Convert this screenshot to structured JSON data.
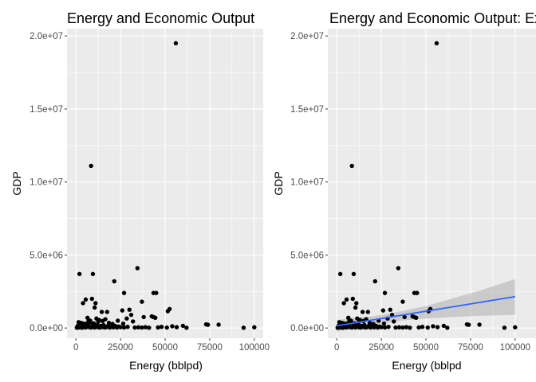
{
  "chart_data": [
    {
      "type": "scatter",
      "title": "Energy and Economic Output",
      "xlabel": "Energy (bblpd)",
      "ylabel": "GDP",
      "xlim": [
        -5000,
        105000
      ],
      "ylim": [
        -700000,
        20500000
      ],
      "x_ticks": [
        0,
        25000,
        50000,
        75000,
        100000
      ],
      "x_tick_labels": [
        "0",
        "25000",
        "50000",
        "75000",
        "100000"
      ],
      "y_ticks": [
        0,
        5000000,
        10000000,
        15000000,
        20000000
      ],
      "y_tick_labels": [
        "0.0e+00",
        "5.0e+06",
        "1.0e+07",
        "1.5e+07",
        "2.0e+07"
      ],
      "grid": true,
      "points": [
        [
          56000,
          19500000
        ],
        [
          8500,
          11100000
        ],
        [
          34500,
          4100000
        ],
        [
          2000,
          3700000
        ],
        [
          9500,
          3700000
        ],
        [
          21500,
          3200000
        ],
        [
          43500,
          2400000
        ],
        [
          45000,
          2400000
        ],
        [
          27000,
          2400000
        ],
        [
          9000,
          2000000
        ],
        [
          5500,
          1950000
        ],
        [
          4000,
          1700000
        ],
        [
          11000,
          1700000
        ],
        [
          52500,
          1300000
        ],
        [
          51500,
          1150000
        ],
        [
          30000,
          1250000
        ],
        [
          37000,
          1800000
        ],
        [
          10500,
          1400000
        ],
        [
          14500,
          1100000
        ],
        [
          17500,
          1100000
        ],
        [
          26000,
          1200000
        ],
        [
          31000,
          900000
        ],
        [
          42500,
          800000
        ],
        [
          43500,
          750000
        ],
        [
          44500,
          700000
        ],
        [
          38000,
          750000
        ],
        [
          28500,
          650000
        ],
        [
          16500,
          600000
        ],
        [
          6500,
          700000
        ],
        [
          11500,
          650000
        ],
        [
          13000,
          550000
        ],
        [
          8000,
          500000
        ],
        [
          1500,
          400000
        ],
        [
          3000,
          350000
        ],
        [
          4500,
          300000
        ],
        [
          5500,
          250000
        ],
        [
          7000,
          200000
        ],
        [
          9500,
          250000
        ],
        [
          12000,
          200000
        ],
        [
          14000,
          150000
        ],
        [
          15500,
          200000
        ],
        [
          18000,
          150000
        ],
        [
          20000,
          100000
        ],
        [
          22000,
          150000
        ],
        [
          24000,
          100000
        ],
        [
          1000,
          150000
        ],
        [
          2000,
          100000
        ],
        [
          2500,
          50000
        ],
        [
          3500,
          120000
        ],
        [
          4500,
          80000
        ],
        [
          5500,
          40000
        ],
        [
          6500,
          100000
        ],
        [
          7500,
          60000
        ],
        [
          8500,
          30000
        ],
        [
          9500,
          80000
        ],
        [
          10500,
          40000
        ],
        [
          11500,
          90000
        ],
        [
          12500,
          50000
        ],
        [
          13500,
          30000
        ],
        [
          14500,
          70000
        ],
        [
          16000,
          40000
        ],
        [
          17000,
          60000
        ],
        [
          19000,
          30000
        ],
        [
          21000,
          50000
        ],
        [
          23000,
          30000
        ],
        [
          25000,
          60000
        ],
        [
          27000,
          40000
        ],
        [
          29000,
          80000
        ],
        [
          33000,
          30000
        ],
        [
          35000,
          50000
        ],
        [
          37000,
          30000
        ],
        [
          39000,
          60000
        ],
        [
          41000,
          20000
        ],
        [
          46000,
          40000
        ],
        [
          48000,
          80000
        ],
        [
          51000,
          30000
        ],
        [
          54000,
          120000
        ],
        [
          56500,
          60000
        ],
        [
          60000,
          150000
        ],
        [
          62000,
          20000
        ],
        [
          73000,
          250000
        ],
        [
          74000,
          220000
        ],
        [
          80000,
          230000
        ],
        [
          94000,
          20000
        ],
        [
          100000,
          50000
        ],
        [
          500,
          20000
        ],
        [
          1500,
          30000
        ],
        [
          2500,
          150000
        ],
        [
          3500,
          20000
        ],
        [
          6000,
          300000
        ],
        [
          7000,
          450000
        ],
        [
          8000,
          380000
        ],
        [
          10000,
          320000
        ],
        [
          12500,
          420000
        ],
        [
          15000,
          480000
        ],
        [
          18500,
          350000
        ],
        [
          20500,
          280000
        ],
        [
          23500,
          500000
        ],
        [
          26500,
          300000
        ],
        [
          32000,
          450000
        ]
      ]
    },
    {
      "type": "scatter",
      "title": "Energy and Economic Output: Ex",
      "xlabel": "Energy (bblpd",
      "ylabel": "GDP",
      "xlim": [
        -5000,
        105000
      ],
      "ylim": [
        -700000,
        20500000
      ],
      "x_ticks": [
        0,
        25000,
        50000,
        75000,
        100000
      ],
      "x_tick_labels": [
        "0",
        "25000",
        "50000",
        "75000",
        "100000"
      ],
      "y_ticks": [
        0,
        5000000,
        10000000,
        15000000,
        20000000
      ],
      "y_tick_labels": [
        "0.0e+00",
        "5.0e+06",
        "1.0e+07",
        "1.5e+07",
        "2.0e+07"
      ],
      "grid": true,
      "trend_line": {
        "x": [
          0,
          100000
        ],
        "y": [
          150000,
          2150000
        ],
        "color": "#3366ff"
      },
      "confidence_band": {
        "x": [
          0,
          10000,
          20000,
          30000,
          40000,
          50000,
          60000,
          70000,
          80000,
          90000,
          100000
        ],
        "lower": [
          -250000,
          0,
          200000,
          400000,
          550000,
          650000,
          720000,
          780000,
          830000,
          870000,
          900000
        ],
        "upper": [
          550000,
          700000,
          800000,
          1000000,
          1250000,
          1500000,
          1850000,
          2200000,
          2550000,
          2950000,
          3350000
        ]
      },
      "points": [
        [
          56000,
          19500000
        ],
        [
          8500,
          11100000
        ],
        [
          34500,
          4100000
        ],
        [
          2000,
          3700000
        ],
        [
          9500,
          3700000
        ],
        [
          21500,
          3200000
        ],
        [
          43500,
          2400000
        ],
        [
          45000,
          2400000
        ],
        [
          27000,
          2400000
        ],
        [
          9000,
          2000000
        ],
        [
          5500,
          1950000
        ],
        [
          4000,
          1700000
        ],
        [
          11000,
          1700000
        ],
        [
          52500,
          1300000
        ],
        [
          51500,
          1150000
        ],
        [
          30000,
          1250000
        ],
        [
          37000,
          1800000
        ],
        [
          10500,
          1400000
        ],
        [
          14500,
          1100000
        ],
        [
          17500,
          1100000
        ],
        [
          26000,
          1200000
        ],
        [
          31000,
          900000
        ],
        [
          42500,
          800000
        ],
        [
          43500,
          750000
        ],
        [
          44500,
          700000
        ],
        [
          38000,
          750000
        ],
        [
          28500,
          650000
        ],
        [
          16500,
          600000
        ],
        [
          6500,
          700000
        ],
        [
          11500,
          650000
        ],
        [
          13000,
          550000
        ],
        [
          8000,
          500000
        ],
        [
          1500,
          400000
        ],
        [
          3000,
          350000
        ],
        [
          4500,
          300000
        ],
        [
          5500,
          250000
        ],
        [
          7000,
          200000
        ],
        [
          9500,
          250000
        ],
        [
          12000,
          200000
        ],
        [
          14000,
          150000
        ],
        [
          15500,
          200000
        ],
        [
          18000,
          150000
        ],
        [
          20000,
          100000
        ],
        [
          22000,
          150000
        ],
        [
          24000,
          100000
        ],
        [
          1000,
          150000
        ],
        [
          2000,
          100000
        ],
        [
          2500,
          50000
        ],
        [
          3500,
          120000
        ],
        [
          4500,
          80000
        ],
        [
          5500,
          40000
        ],
        [
          6500,
          100000
        ],
        [
          7500,
          60000
        ],
        [
          8500,
          30000
        ],
        [
          9500,
          80000
        ],
        [
          10500,
          40000
        ],
        [
          11500,
          90000
        ],
        [
          12500,
          50000
        ],
        [
          13500,
          30000
        ],
        [
          14500,
          70000
        ],
        [
          16000,
          40000
        ],
        [
          17000,
          60000
        ],
        [
          19000,
          30000
        ],
        [
          21000,
          50000
        ],
        [
          23000,
          30000
        ],
        [
          25000,
          60000
        ],
        [
          27000,
          40000
        ],
        [
          29000,
          80000
        ],
        [
          33000,
          30000
        ],
        [
          35000,
          50000
        ],
        [
          37000,
          30000
        ],
        [
          39000,
          60000
        ],
        [
          41000,
          20000
        ],
        [
          46000,
          40000
        ],
        [
          48000,
          80000
        ],
        [
          51000,
          30000
        ],
        [
          54000,
          120000
        ],
        [
          56500,
          60000
        ],
        [
          60000,
          150000
        ],
        [
          62000,
          20000
        ],
        [
          73000,
          250000
        ],
        [
          74000,
          220000
        ],
        [
          80000,
          230000
        ],
        [
          94000,
          20000
        ],
        [
          100000,
          50000
        ],
        [
          500,
          20000
        ],
        [
          1500,
          30000
        ],
        [
          2500,
          150000
        ],
        [
          3500,
          20000
        ],
        [
          6000,
          300000
        ],
        [
          7000,
          450000
        ],
        [
          8000,
          380000
        ],
        [
          10000,
          320000
        ],
        [
          12500,
          420000
        ],
        [
          15000,
          480000
        ],
        [
          18500,
          350000
        ],
        [
          20500,
          280000
        ],
        [
          23500,
          500000
        ],
        [
          26500,
          300000
        ],
        [
          32000,
          450000
        ]
      ]
    }
  ]
}
